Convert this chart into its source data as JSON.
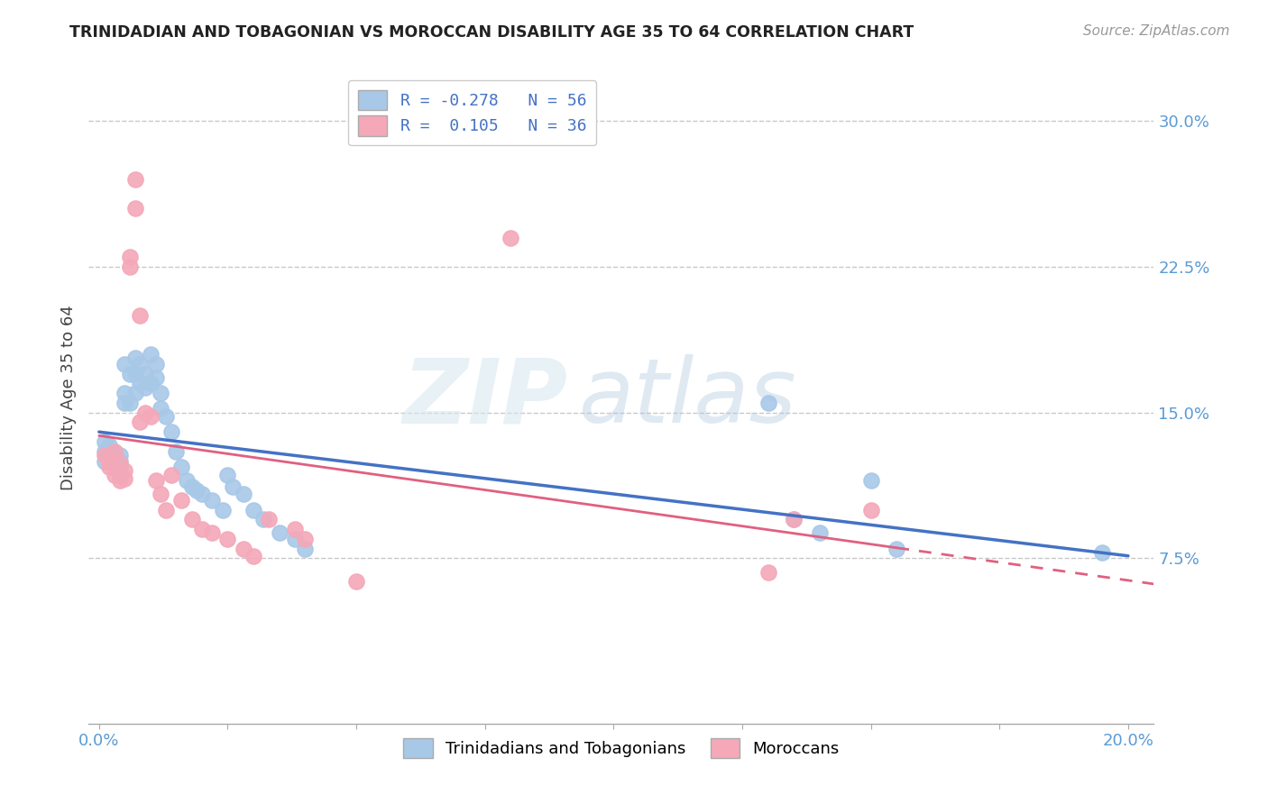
{
  "title": "TRINIDADIAN AND TOBAGONIAN VS MOROCCAN DISABILITY AGE 35 TO 64 CORRELATION CHART",
  "source": "Source: ZipAtlas.com",
  "ylabel": "Disability Age 35 to 64",
  "xlim": [
    -0.002,
    0.205
  ],
  "ylim": [
    -0.01,
    0.325
  ],
  "xticks": [
    0.0,
    0.025,
    0.05,
    0.075,
    0.1,
    0.125,
    0.15,
    0.175,
    0.2
  ],
  "xticklabels": [
    "0.0%",
    "",
    "",
    "",
    "",
    "",
    "",
    "",
    "20.0%"
  ],
  "yticks": [
    0.075,
    0.15,
    0.225,
    0.3
  ],
  "yticklabels": [
    "7.5%",
    "15.0%",
    "22.5%",
    "30.0%"
  ],
  "blue_color": "#a8c8e8",
  "pink_color": "#f4a8b8",
  "blue_line_color": "#4472c4",
  "pink_line_color": "#e06080",
  "legend_label_blue": "Trinidadians and Tobagonians",
  "legend_label_pink": "Moroccans",
  "R_blue": -0.278,
  "N_blue": 56,
  "R_pink": 0.105,
  "N_pink": 36,
  "blue_x": [
    0.001,
    0.001,
    0.001,
    0.002,
    0.002,
    0.002,
    0.003,
    0.003,
    0.003,
    0.003,
    0.004,
    0.004,
    0.004,
    0.004,
    0.005,
    0.005,
    0.005,
    0.006,
    0.006,
    0.007,
    0.007,
    0.007,
    0.008,
    0.008,
    0.009,
    0.009,
    0.01,
    0.01,
    0.011,
    0.011,
    0.012,
    0.012,
    0.013,
    0.014,
    0.015,
    0.016,
    0.017,
    0.018,
    0.019,
    0.02,
    0.022,
    0.024,
    0.025,
    0.026,
    0.028,
    0.03,
    0.032,
    0.035,
    0.038,
    0.04,
    0.13,
    0.135,
    0.14,
    0.15,
    0.155,
    0.195
  ],
  "blue_y": [
    0.135,
    0.13,
    0.125,
    0.133,
    0.128,
    0.125,
    0.13,
    0.128,
    0.125,
    0.122,
    0.128,
    0.125,
    0.122,
    0.118,
    0.175,
    0.16,
    0.155,
    0.17,
    0.155,
    0.178,
    0.17,
    0.16,
    0.175,
    0.165,
    0.17,
    0.163,
    0.18,
    0.165,
    0.175,
    0.168,
    0.16,
    0.152,
    0.148,
    0.14,
    0.13,
    0.122,
    0.115,
    0.112,
    0.11,
    0.108,
    0.105,
    0.1,
    0.118,
    0.112,
    0.108,
    0.1,
    0.095,
    0.088,
    0.085,
    0.08,
    0.155,
    0.095,
    0.088,
    0.115,
    0.08,
    0.078
  ],
  "pink_x": [
    0.001,
    0.002,
    0.002,
    0.003,
    0.003,
    0.004,
    0.004,
    0.005,
    0.005,
    0.006,
    0.006,
    0.007,
    0.007,
    0.008,
    0.008,
    0.009,
    0.01,
    0.011,
    0.012,
    0.013,
    0.014,
    0.016,
    0.018,
    0.02,
    0.022,
    0.025,
    0.028,
    0.03,
    0.033,
    0.038,
    0.04,
    0.05,
    0.08,
    0.13,
    0.135,
    0.15
  ],
  "pink_y": [
    0.128,
    0.125,
    0.122,
    0.13,
    0.118,
    0.124,
    0.115,
    0.12,
    0.116,
    0.23,
    0.225,
    0.27,
    0.255,
    0.2,
    0.145,
    0.15,
    0.148,
    0.115,
    0.108,
    0.1,
    0.118,
    0.105,
    0.095,
    0.09,
    0.088,
    0.085,
    0.08,
    0.076,
    0.095,
    0.09,
    0.085,
    0.063,
    0.24,
    0.068,
    0.095,
    0.1
  ],
  "watermark_zip": "ZIP",
  "watermark_atlas": "atlas",
  "background_color": "#ffffff",
  "grid_color": "#c8c8c8",
  "tick_color": "#5a9bd4",
  "title_color": "#222222",
  "source_color": "#999999"
}
